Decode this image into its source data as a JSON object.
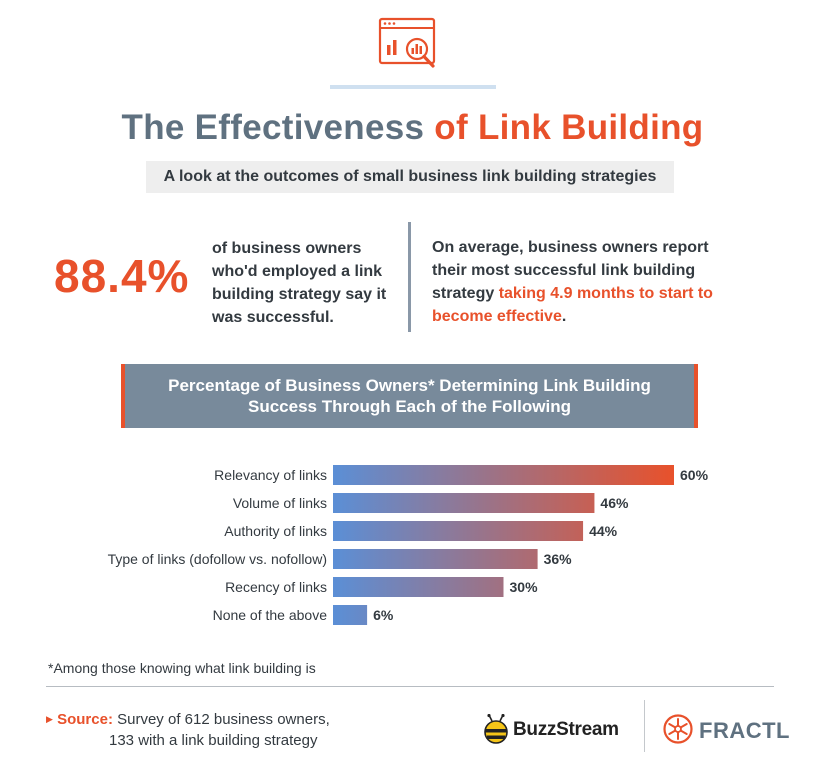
{
  "header": {
    "title_part1": "The Effectiveness",
    "title_part2": "of Link Building",
    "subtitle": "A look at the outcomes of small business link building strategies",
    "icon": "browser-analytics-magnifier-icon"
  },
  "stats": {
    "big_value": "88.4%",
    "big_caption": "of business owners who'd employed a link building strategy say it was successful.",
    "avg_text_before": "On average, business owners report their most successful link building strategy",
    "avg_text_highlight": "taking 4.9 months to start to become effective",
    "avg_text_after": "."
  },
  "banner": {
    "title": "Percentage of Business Owners* Determining Link Building Success Through Each of the Following"
  },
  "chart_data": {
    "type": "bar",
    "orientation": "horizontal",
    "title": "Percentage of Business Owners* Determining Link Building Success Through Each of the Following",
    "categories": [
      "Relevancy of links",
      "Volume of links",
      "Authority of links",
      "Type of links (dofollow vs. nofollow)",
      "Recency of links",
      "None of the above"
    ],
    "values": [
      60,
      46,
      44,
      36,
      30,
      6
    ],
    "value_labels": [
      "60%",
      "46%",
      "44%",
      "36%",
      "30%",
      "6%"
    ],
    "unit": "%",
    "xlim": [
      0,
      60
    ],
    "grid": false,
    "gradient_colors": [
      "#5b8fd6",
      "#e8512b"
    ]
  },
  "footer": {
    "footnote": "*Among those knowing what link building is",
    "source_label": "Source:",
    "source_line1": "Survey of 612 business owners,",
    "source_line2": "133 with a link building strategy",
    "logo1": "BuzzStream",
    "logo2": "FRACTL"
  },
  "colors": {
    "accent": "#e8512b",
    "slate": "#5f7180",
    "text": "#333a40",
    "banner": "#788a9b"
  }
}
